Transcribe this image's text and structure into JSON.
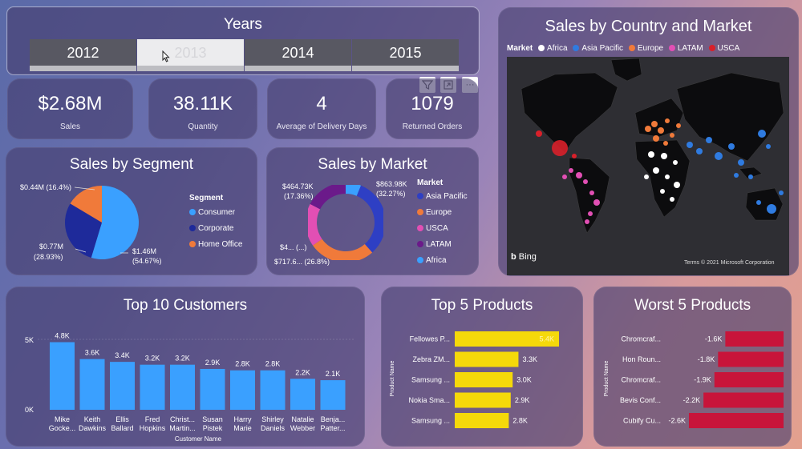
{
  "years": {
    "title": "Years",
    "options": [
      "2012",
      "2013",
      "2014",
      "2015"
    ],
    "selected": "2013"
  },
  "kpis": [
    {
      "value": "$2.68M",
      "label": "Sales"
    },
    {
      "value": "38.11K",
      "label": "Quantity"
    },
    {
      "value": "4",
      "label": "Average of Delivery Days"
    },
    {
      "value": "1079",
      "label": "Returned Orders"
    }
  ],
  "toolbar": {
    "filter_icon": "filter-icon",
    "focus_icon": "focus-mode-icon",
    "more_label": "···"
  },
  "segment": {
    "title": "Sales by Segment",
    "legend_title": "Segment",
    "labels": [
      "$0.44M (16.4%)",
      "$0.77M",
      "(28.93%)",
      "$1.46M",
      "(54.67%)"
    ],
    "items": [
      {
        "name": "Consumer",
        "color": "#3aa0ff",
        "value": 1.46,
        "pct": 54.67
      },
      {
        "name": "Corporate",
        "color": "#1e2a9a",
        "value": 0.77,
        "pct": 28.93
      },
      {
        "name": "Home Office",
        "color": "#f07a3a",
        "value": 0.44,
        "pct": 16.4
      }
    ]
  },
  "market": {
    "title": "Sales by Market",
    "legend_title": "Market",
    "labels": [
      "$863.98K",
      "(32.27%)",
      "$464.73K",
      "(17.36%)",
      "$4... (...)",
      "$717.6... (26.8%)"
    ],
    "items": [
      {
        "name": "Asia Pacific",
        "color": "#2e3fc4",
        "pct": 32.27
      },
      {
        "name": "Europe",
        "color": "#f07a3a",
        "pct": 26.8
      },
      {
        "name": "USCA",
        "color": "#e24fb4",
        "pct": 17.36
      },
      {
        "name": "LATAM",
        "color": "#6b1a8a",
        "pct": 17.36
      },
      {
        "name": "Africa",
        "color": "#3aa0ff",
        "pct": 6.21
      }
    ]
  },
  "map": {
    "title": "Sales by Country and Market",
    "legend_title": "Market",
    "legend": [
      {
        "name": "Africa",
        "color": "#ffffff"
      },
      {
        "name": "Asia Pacific",
        "color": "#2f7be0"
      },
      {
        "name": "Europe",
        "color": "#f07a3a"
      },
      {
        "name": "LATAM",
        "color": "#e24fb4"
      },
      {
        "name": "USCA",
        "color": "#d8202a"
      }
    ],
    "bing": "Bing",
    "attribution": "Terms  © 2021 Microsoft Corporation"
  },
  "top_customers": {
    "title": "Top 10 Customers",
    "xlabel": "Customer Name",
    "yticks": [
      "5K",
      "0K"
    ],
    "bar_color": "#3aa0ff"
  },
  "top_products": {
    "title": "Top 5 Products",
    "ylabel": "Product Name",
    "bar_color": "#f5d90a"
  },
  "worst_products": {
    "title": "Worst 5 Products",
    "ylabel": "Product Name",
    "bar_color": "#c8143a"
  },
  "chart_data": [
    {
      "type": "bar",
      "title": "Top 10 Customers",
      "xlabel": "Customer Name",
      "categories": [
        "Mike Gocke...",
        "Keith Dawkins",
        "Ellis Ballard",
        "Fred Hopkins",
        "Christ... Martin...",
        "Susan Pistek",
        "Harry Marie",
        "Shirley Daniels",
        "Natalie Webber",
        "Benja... Patter..."
      ],
      "category_lines": [
        [
          "Mike",
          "Gocke..."
        ],
        [
          "Keith",
          "Dawkins"
        ],
        [
          "Ellis",
          "Ballard"
        ],
        [
          "Fred",
          "Hopkins"
        ],
        [
          "Christ...",
          "Martin..."
        ],
        [
          "Susan",
          "Pistek"
        ],
        [
          "Harry",
          "Marie"
        ],
        [
          "Shirley",
          "Daniels"
        ],
        [
          "Natalie",
          "Webber"
        ],
        [
          "Benja...",
          "Patter..."
        ]
      ],
      "values": [
        4800,
        3600,
        3400,
        3200,
        3200,
        2900,
        2800,
        2800,
        2200,
        2100
      ],
      "value_labels": [
        "4.8K",
        "3.6K",
        "3.4K",
        "3.2K",
        "3.2K",
        "2.9K",
        "2.8K",
        "2.8K",
        "2.2K",
        "2.1K"
      ],
      "ylim": [
        0,
        5000
      ]
    },
    {
      "type": "bar",
      "orientation": "horizontal",
      "title": "Top 5 Products",
      "ylabel": "Product Name",
      "categories": [
        "Fellowes P...",
        "Zebra ZM...",
        "Samsung ...",
        "Nokia Sma...",
        "Samsung ..."
      ],
      "values": [
        5400,
        3300,
        3000,
        2900,
        2800
      ],
      "value_labels": [
        "5.4K",
        "3.3K",
        "3.0K",
        "2.9K",
        "2.8K"
      ]
    },
    {
      "type": "bar",
      "orientation": "horizontal",
      "title": "Worst 5 Products",
      "ylabel": "Product Name",
      "categories": [
        "Chromcraf...",
        "Hon Roun...",
        "Chromcraf...",
        "Bevis Conf...",
        "Cubify Cu..."
      ],
      "values": [
        -1600,
        -1800,
        -1900,
        -2200,
        -2600
      ],
      "value_labels": [
        "-1.6K",
        "-1.8K",
        "-1.9K",
        "-2.2K",
        "-2.6K"
      ]
    }
  ]
}
